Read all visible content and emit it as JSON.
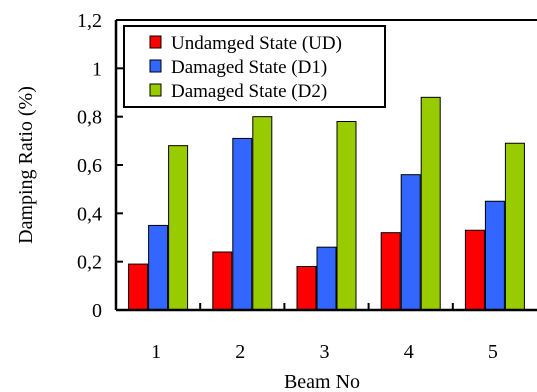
{
  "chart_data": {
    "type": "bar",
    "title": "",
    "xlabel": "Beam No",
    "ylabel": "Damping Ratio (%)",
    "categories": [
      "1",
      "2",
      "3",
      "4",
      "5"
    ],
    "ylim": [
      0,
      1.2
    ],
    "yticks": [
      "0",
      "0,2",
      "0,4",
      "0,6",
      "0,8",
      "1",
      "1,2"
    ],
    "grid": false,
    "legend_position": "top-left",
    "series": [
      {
        "name": "Undamged State (UD)",
        "color": "#ff0000",
        "values": [
          0.19,
          0.24,
          0.18,
          0.32,
          0.33
        ]
      },
      {
        "name": "Damaged State (D1)",
        "color": "#3366ff",
        "values": [
          0.35,
          0.71,
          0.26,
          0.56,
          0.45
        ]
      },
      {
        "name": "Damaged State (D2)",
        "color": "#99cc00",
        "values": [
          0.68,
          0.8,
          0.78,
          0.88,
          0.69
        ]
      }
    ]
  }
}
